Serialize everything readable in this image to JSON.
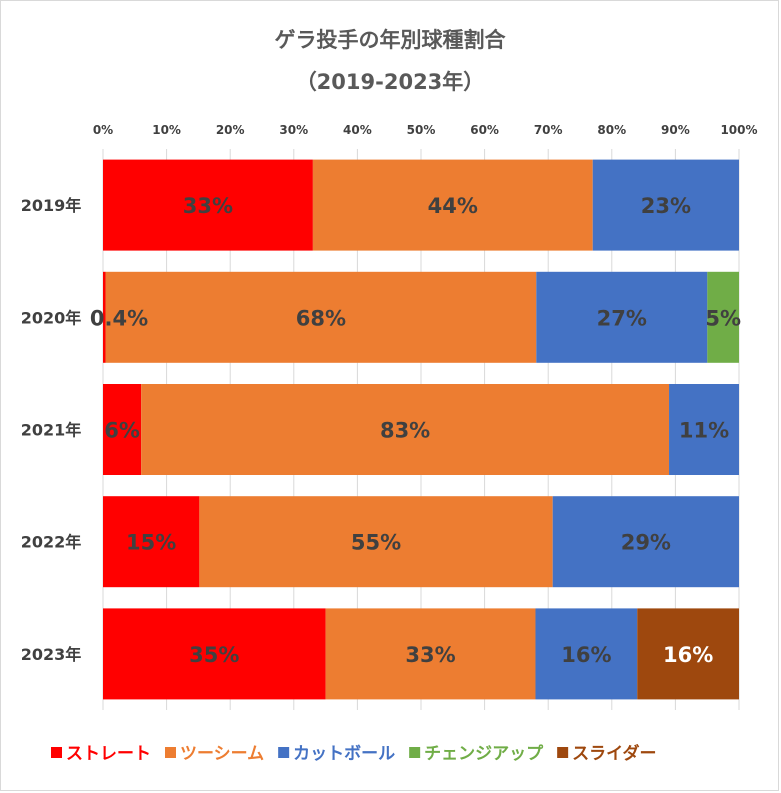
{
  "chart_data": {
    "type": "bar",
    "orientation": "horizontal",
    "stacked": "percent",
    "title": "ゲラ投手の年別球種割合",
    "subtitle": "（2019-2023年）",
    "categories": [
      "2019年",
      "2020年",
      "2021年",
      "2022年",
      "2023年"
    ],
    "x_ticks": [
      "0%",
      "10%",
      "20%",
      "30%",
      "40%",
      "50%",
      "60%",
      "70%",
      "80%",
      "90%",
      "100%"
    ],
    "xlim": [
      0,
      100
    ],
    "grid": true,
    "legend_position": "bottom",
    "series": [
      {
        "name": "ストレート",
        "color": "#FF0000",
        "values": [
          33,
          0.4,
          6,
          15,
          35
        ],
        "labels": [
          "33%",
          "0.4%",
          "6%",
          "15%",
          "35%"
        ],
        "label_color": "#404040"
      },
      {
        "name": "ツーシーム",
        "color": "#ED7D31",
        "values": [
          44,
          68,
          83,
          55,
          33
        ],
        "labels": [
          "44%",
          "68%",
          "83%",
          "55%",
          "33%"
        ],
        "label_color": "#404040"
      },
      {
        "name": "カットボール",
        "color": "#4472C4",
        "values": [
          23,
          27,
          11,
          29,
          16
        ],
        "labels": [
          "23%",
          "27%",
          "11%",
          "29%",
          "16%"
        ],
        "label_color": "#404040"
      },
      {
        "name": "チェンジアップ",
        "color": "#70AD47",
        "values": [
          0,
          5,
          0,
          0,
          0
        ],
        "labels": [
          "",
          "5%",
          "",
          "",
          ""
        ],
        "label_color": "#404040"
      },
      {
        "name": "スライダー",
        "color": "#9E480E",
        "values": [
          0,
          0,
          0,
          0,
          16
        ],
        "labels": [
          "",
          "",
          "",
          "",
          "16%"
        ],
        "label_color": "#FFFFFF"
      }
    ]
  }
}
